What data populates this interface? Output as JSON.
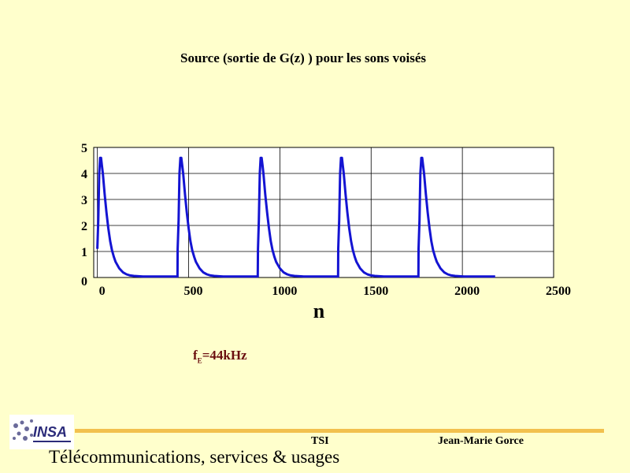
{
  "slide": {
    "fe_main": "f",
    "fe_sub": "E",
    "fe_value": "=44kHz"
  },
  "footer": {
    "logo_text": "INSA",
    "course_code": "TSI",
    "author": "Jean-Marie Gorce",
    "course_title": "Télécommunications, services & usages"
  },
  "chart_data": {
    "type": "line",
    "title": "Source (sortie de G(z) ) pour les sons voisés",
    "xlabel": "n",
    "ylabel": "",
    "xlim": [
      -20,
      2500
    ],
    "ylim": [
      0,
      5
    ],
    "xticks": [
      0,
      500,
      1000,
      1500,
      2000,
      2500
    ],
    "yticks": [
      0,
      1,
      2,
      3,
      4,
      5
    ],
    "grid": true,
    "series_color": "#1414D2",
    "pulse_period": 440,
    "pulse_starts": [
      0,
      440,
      880,
      1320,
      1760
    ],
    "n_end": 2180,
    "series": [
      {
        "x": [
          0,
          5,
          10,
          15,
          20,
          25,
          30,
          40,
          50,
          60,
          70,
          80,
          90,
          100,
          120,
          140,
          160,
          180,
          200,
          250,
          300,
          350,
          400,
          439,
          440,
          445,
          450,
          455,
          460,
          465,
          470,
          480,
          490,
          500,
          510,
          520,
          530,
          540,
          560,
          580,
          600,
          620,
          640,
          690,
          740,
          790,
          840,
          879,
          880,
          885,
          890,
          895,
          900,
          905,
          910,
          920,
          930,
          940,
          950,
          960,
          970,
          980,
          1000,
          1020,
          1040,
          1060,
          1080,
          1130,
          1180,
          1230,
          1280,
          1319,
          1320,
          1325,
          1330,
          1335,
          1340,
          1345,
          1350,
          1360,
          1370,
          1380,
          1390,
          1400,
          1410,
          1420,
          1440,
          1460,
          1480,
          1500,
          1520,
          1570,
          1620,
          1670,
          1720,
          1759,
          1760,
          1765,
          1770,
          1775,
          1780,
          1785,
          1790,
          1800,
          1810,
          1820,
          1830,
          1840,
          1850,
          1860,
          1880,
          1900,
          1920,
          1940,
          1960,
          2010,
          2060,
          2110,
          2180
        ],
        "y": [
          1.1,
          2.2,
          4.0,
          4.6,
          4.6,
          4.3,
          4.0,
          3.2,
          2.5,
          1.9,
          1.4,
          1.05,
          0.8,
          0.6,
          0.35,
          0.2,
          0.12,
          0.08,
          0.06,
          0.04,
          0.04,
          0.04,
          0.04,
          0.04,
          1.1,
          2.2,
          4.0,
          4.6,
          4.6,
          4.3,
          4.0,
          3.2,
          2.5,
          1.9,
          1.4,
          1.05,
          0.8,
          0.6,
          0.35,
          0.2,
          0.12,
          0.08,
          0.06,
          0.04,
          0.04,
          0.04,
          0.04,
          0.04,
          1.1,
          2.2,
          4.0,
          4.6,
          4.6,
          4.3,
          4.0,
          3.2,
          2.5,
          1.9,
          1.4,
          1.05,
          0.8,
          0.6,
          0.35,
          0.2,
          0.12,
          0.08,
          0.06,
          0.04,
          0.04,
          0.04,
          0.04,
          0.04,
          1.1,
          2.2,
          4.0,
          4.6,
          4.6,
          4.3,
          4.0,
          3.2,
          2.5,
          1.9,
          1.4,
          1.05,
          0.8,
          0.6,
          0.35,
          0.2,
          0.12,
          0.08,
          0.06,
          0.04,
          0.04,
          0.04,
          0.04,
          0.04,
          1.1,
          2.2,
          4.0,
          4.6,
          4.6,
          4.3,
          4.0,
          3.2,
          2.5,
          1.9,
          1.4,
          1.05,
          0.8,
          0.6,
          0.35,
          0.2,
          0.12,
          0.08,
          0.06,
          0.04,
          0.04,
          0.04,
          0.04
        ]
      }
    ]
  }
}
